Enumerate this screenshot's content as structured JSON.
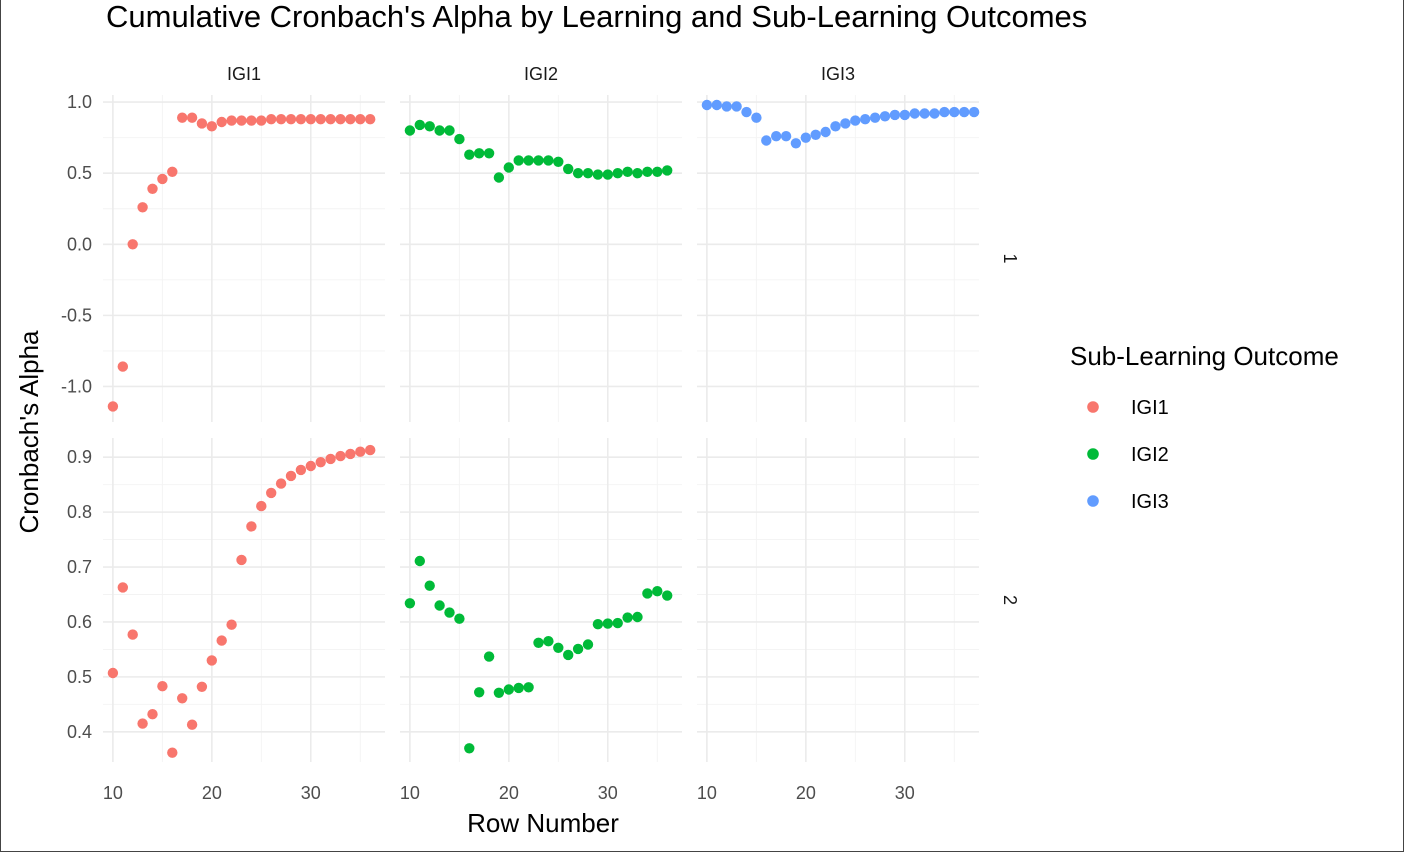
{
  "chart_data": {
    "type": "scatter",
    "title": "Cumulative Cronbach's Alpha by Learning and Sub-Learning Outcomes",
    "xlabel": "Row Number",
    "ylabel": "Cronbach's Alpha",
    "facet_columns": [
      "IGI1",
      "IGI2",
      "IGI3"
    ],
    "facet_rows": [
      "1",
      "2"
    ],
    "xlim": [
      9,
      37.5
    ],
    "x_ticks": [
      10,
      20,
      30
    ],
    "row_ylims": [
      [
        -1.25,
        1.05
      ],
      [
        0.345,
        0.935
      ]
    ],
    "row_y_ticks": [
      [
        1.0,
        0.5,
        0.0,
        -0.5,
        -1.0
      ],
      [
        0.9,
        0.8,
        0.7,
        0.6,
        0.5,
        0.4
      ]
    ],
    "row_y_tick_labels": [
      [
        "1.0",
        "0.5",
        "0.0",
        "-0.5",
        "-1.0"
      ],
      [
        "0.9",
        "0.8",
        "0.7",
        "0.6",
        "0.5",
        "0.4"
      ]
    ],
    "grid": true,
    "legend": {
      "title": "Sub-Learning Outcome",
      "position": "right",
      "entries": [
        {
          "name": "IGI1",
          "color": "#F8766D"
        },
        {
          "name": "IGI2",
          "color": "#00BA38"
        },
        {
          "name": "IGI3",
          "color": "#619CFF"
        }
      ]
    },
    "panels": [
      {
        "row": "1",
        "col": "IGI1",
        "series": "IGI1",
        "x": [
          10,
          11,
          12,
          13,
          14,
          15,
          16,
          17,
          18,
          19,
          20,
          21,
          22,
          23,
          24,
          25,
          26,
          27,
          28,
          29,
          30,
          31,
          32,
          33,
          34,
          35,
          36
        ],
        "y": [
          -1.14,
          -0.86,
          0.0,
          0.26,
          0.39,
          0.46,
          0.51,
          0.89,
          0.89,
          0.85,
          0.83,
          0.86,
          0.87,
          0.87,
          0.87,
          0.87,
          0.88,
          0.88,
          0.88,
          0.88,
          0.88,
          0.88,
          0.88,
          0.88,
          0.88,
          0.88,
          0.88
        ]
      },
      {
        "row": "1",
        "col": "IGI2",
        "series": "IGI2",
        "x": [
          10,
          11,
          12,
          13,
          14,
          15,
          16,
          17,
          18,
          19,
          20,
          21,
          22,
          23,
          24,
          25,
          26,
          27,
          28,
          29,
          30,
          31,
          32,
          33,
          34,
          35,
          36
        ],
        "y": [
          0.8,
          0.84,
          0.83,
          0.8,
          0.8,
          0.74,
          0.63,
          0.64,
          0.64,
          0.47,
          0.54,
          0.59,
          0.59,
          0.59,
          0.59,
          0.58,
          0.53,
          0.5,
          0.5,
          0.49,
          0.49,
          0.5,
          0.51,
          0.5,
          0.51,
          0.51,
          0.52
        ]
      },
      {
        "row": "1",
        "col": "IGI3",
        "series": "IGI3",
        "x": [
          10,
          11,
          12,
          13,
          14,
          15,
          16,
          17,
          18,
          19,
          20,
          21,
          22,
          23,
          24,
          25,
          26,
          27,
          28,
          29,
          30,
          31,
          32,
          33,
          34,
          35,
          36,
          37
        ],
        "y": [
          0.98,
          0.98,
          0.97,
          0.97,
          0.93,
          0.89,
          0.73,
          0.76,
          0.76,
          0.71,
          0.75,
          0.77,
          0.79,
          0.83,
          0.85,
          0.87,
          0.88,
          0.89,
          0.9,
          0.91,
          0.91,
          0.92,
          0.92,
          0.92,
          0.93,
          0.93,
          0.93,
          0.93
        ]
      },
      {
        "row": "2",
        "col": "IGI1",
        "series": "IGI1",
        "x": [
          10,
          11,
          12,
          13,
          14,
          15,
          16,
          17,
          18,
          19,
          20,
          21,
          22,
          23,
          24,
          25,
          26,
          27,
          28,
          29,
          30,
          31,
          32,
          33,
          34,
          35,
          36
        ],
        "y": [
          0.507,
          0.663,
          0.577,
          0.415,
          0.432,
          0.483,
          0.362,
          0.461,
          0.413,
          0.482,
          0.53,
          0.566,
          0.595,
          0.713,
          0.774,
          0.811,
          0.835,
          0.852,
          0.866,
          0.877,
          0.884,
          0.891,
          0.897,
          0.902,
          0.906,
          0.91,
          0.913
        ]
      },
      {
        "row": "2",
        "col": "IGI2",
        "series": "IGI2",
        "x": [
          10,
          11,
          12,
          13,
          14,
          15,
          16,
          17,
          18,
          19,
          20,
          21,
          22,
          23,
          24,
          25,
          26,
          27,
          28,
          29,
          30,
          31,
          32,
          33,
          34,
          35,
          36
        ],
        "y": [
          0.634,
          0.711,
          0.666,
          0.63,
          0.617,
          0.606,
          0.37,
          0.472,
          0.537,
          0.471,
          0.477,
          0.48,
          0.481,
          0.562,
          0.565,
          0.553,
          0.54,
          0.551,
          0.559,
          0.596,
          0.597,
          0.598,
          0.608,
          0.609,
          0.652,
          0.656,
          0.648
        ]
      },
      {
        "row": "2",
        "col": "IGI3",
        "series": "IGI3",
        "x": [],
        "y": []
      }
    ]
  }
}
